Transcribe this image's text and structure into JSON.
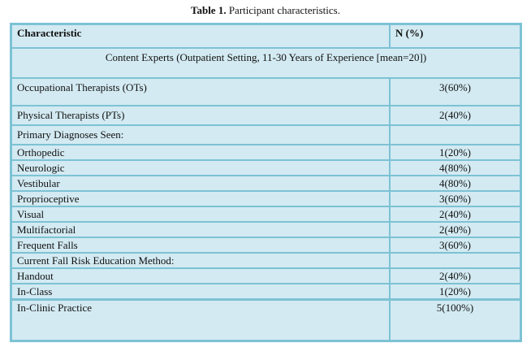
{
  "caption": {
    "label": "Table 1.",
    "text": " Participant characteristics."
  },
  "table": {
    "headers": [
      "Characteristic",
      "N (%)"
    ],
    "group_row": "Content Experts (Outpatient Setting, 11-30 Years of Experience [mean=20])",
    "rows": [
      {
        "label": "Occupational Therapists (OTs)",
        "value": "3(60%)"
      },
      {
        "label": "Physical Therapists (PTs)",
        "value": "2(40%)"
      },
      {
        "label": "Primary Diagnoses Seen:",
        "value": ""
      },
      {
        "label": "Orthopedic",
        "value": "1(20%)"
      },
      {
        "label": "Neurologic",
        "value": "4(80%)"
      },
      {
        "label": "Vestibular",
        "value": "4(80%)"
      },
      {
        "label": "Proprioceptive",
        "value": "3(60%)"
      },
      {
        "label": "Visual",
        "value": "2(40%)"
      },
      {
        "label": "Multifactorial",
        "value": "2(40%)"
      },
      {
        "label": "Frequent Falls",
        "value": "3(60%)"
      },
      {
        "label": "Current Fall Risk Education Method:",
        "value": ""
      },
      {
        "label": "Handout",
        "value": "2(40%)"
      },
      {
        "label": "In-Class",
        "value": "1(20%)"
      },
      {
        "label": "In-Clinic Practice",
        "value": "5(100%)"
      }
    ]
  },
  "colors": {
    "cell_background": "#d3eaf2",
    "border": "#7dc2d4"
  }
}
